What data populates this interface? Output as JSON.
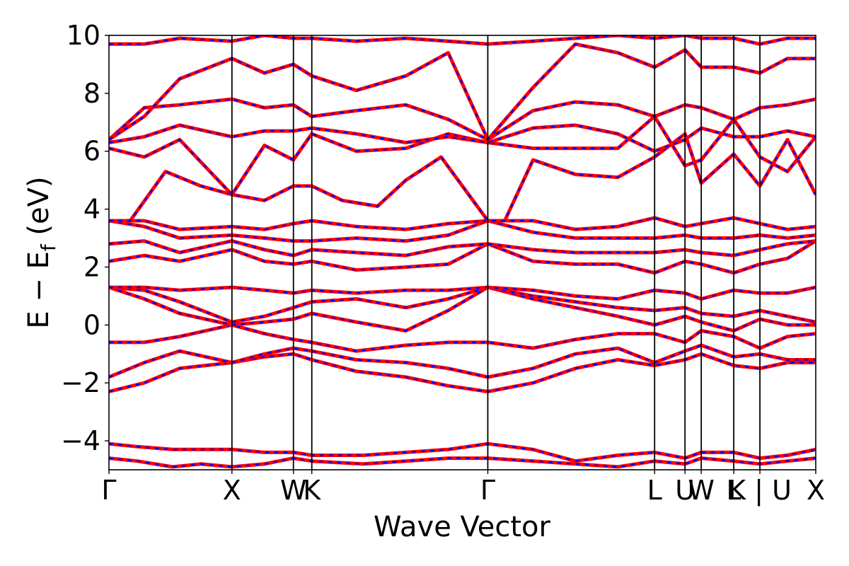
{
  "chart_data": {
    "type": "line",
    "title": "",
    "xlabel": "Wave Vector",
    "ylabel": "E − E",
    "ylabel_sub": "f",
    "ylabel_unit": " (eV)",
    "ylim": [
      -5,
      10
    ],
    "yticks": [
      -4,
      -2,
      0,
      2,
      4,
      6,
      8,
      10
    ],
    "ytick_labels": [
      "−4",
      "−2",
      "0",
      "2",
      "4",
      "6",
      "8",
      "10"
    ],
    "xlim": [
      0,
      1
    ],
    "kpoints": [
      {
        "label": "Γ",
        "x": 0.0
      },
      {
        "label": "X",
        "x": 0.174
      },
      {
        "label": "W",
        "x": 0.261
      },
      {
        "label": "K",
        "x": 0.287
      },
      {
        "label": "Γ",
        "x": 0.536
      },
      {
        "label": "L",
        "x": 0.772
      },
      {
        "label": "U",
        "x": 0.815
      },
      {
        "label": "W",
        "x": 0.838
      },
      {
        "label": "L",
        "x": 0.884
      },
      {
        "label": "K | U",
        "x": 0.921
      },
      {
        "label": "X",
        "x": 1.0
      }
    ],
    "grid": false,
    "legend": "none",
    "series_colors": {
      "primary": "#ff0000",
      "overlay": "#0000ff"
    },
    "series": [
      {
        "x": [
          0,
          0.04,
          0.09,
          0.13,
          0.174,
          0.22,
          0.261,
          0.287,
          0.36,
          0.42,
          0.48,
          0.536,
          0.6,
          0.66,
          0.72,
          0.772,
          0.815,
          0.838,
          0.884,
          0.921,
          0.96,
          1.0
        ],
        "y": [
          -4.1,
          -4.2,
          -4.3,
          -4.3,
          -4.3,
          -4.4,
          -4.4,
          -4.5,
          -4.5,
          -4.4,
          -4.3,
          -4.1,
          -4.3,
          -4.7,
          -4.5,
          -4.4,
          -4.6,
          -4.4,
          -4.4,
          -4.6,
          -4.5,
          -4.3
        ]
      },
      {
        "x": [
          0,
          0.04,
          0.09,
          0.13,
          0.174,
          0.22,
          0.261,
          0.287,
          0.36,
          0.42,
          0.48,
          0.536,
          0.6,
          0.66,
          0.72,
          0.772,
          0.815,
          0.838,
          0.884,
          0.921,
          0.96,
          1.0
        ],
        "y": [
          -4.6,
          -4.7,
          -4.9,
          -4.8,
          -4.9,
          -4.8,
          -4.6,
          -4.7,
          -4.8,
          -4.7,
          -4.6,
          -4.6,
          -4.7,
          -4.8,
          -4.9,
          -4.7,
          -4.8,
          -4.6,
          -4.7,
          -4.8,
          -4.7,
          -4.6
        ]
      },
      {
        "x": [
          0,
          0.05,
          0.1,
          0.174,
          0.22,
          0.261,
          0.287,
          0.35,
          0.42,
          0.48,
          0.536,
          0.6,
          0.66,
          0.72,
          0.772,
          0.815,
          0.838,
          0.884,
          0.921,
          0.96,
          1.0
        ],
        "y": [
          -2.3,
          -2.0,
          -1.5,
          -1.3,
          -1.1,
          -1.0,
          -1.2,
          -1.6,
          -1.8,
          -2.1,
          -2.3,
          -2.0,
          -1.5,
          -1.2,
          -1.4,
          -1.2,
          -1.0,
          -1.4,
          -1.5,
          -1.3,
          -1.3
        ]
      },
      {
        "x": [
          0,
          0.05,
          0.1,
          0.174,
          0.22,
          0.261,
          0.287,
          0.35,
          0.42,
          0.48,
          0.536,
          0.6,
          0.66,
          0.72,
          0.772,
          0.815,
          0.838,
          0.884,
          0.921,
          0.96,
          1.0
        ],
        "y": [
          -1.8,
          -1.3,
          -0.9,
          -1.3,
          -1.0,
          -0.8,
          -0.9,
          -1.2,
          -1.3,
          -1.5,
          -1.8,
          -1.5,
          -1.0,
          -0.8,
          -1.3,
          -0.9,
          -0.7,
          -1.1,
          -1.0,
          -1.2,
          -1.2
        ]
      },
      {
        "x": [
          0,
          0.05,
          0.1,
          0.174,
          0.22,
          0.261,
          0.287,
          0.35,
          0.42,
          0.48,
          0.536,
          0.6,
          0.66,
          0.72,
          0.772,
          0.815,
          0.838,
          0.884,
          0.921,
          0.96,
          1.0
        ],
        "y": [
          -0.6,
          -0.6,
          -0.4,
          0.0,
          -0.3,
          -0.5,
          -0.6,
          -0.9,
          -0.7,
          -0.6,
          -0.6,
          -0.8,
          -0.5,
          -0.3,
          -0.3,
          -0.6,
          -0.2,
          -0.4,
          -0.8,
          -0.4,
          -0.3
        ]
      },
      {
        "x": [
          0,
          0.05,
          0.1,
          0.174,
          0.22,
          0.261,
          0.287,
          0.35,
          0.42,
          0.48,
          0.536,
          0.6,
          0.66,
          0.72,
          0.772,
          0.815,
          0.838,
          0.884,
          0.921,
          0.96,
          1.0
        ],
        "y": [
          1.3,
          0.9,
          0.4,
          0.0,
          0.1,
          0.2,
          0.4,
          0.1,
          -0.2,
          0.5,
          1.3,
          0.9,
          0.6,
          0.3,
          0.0,
          0.3,
          0.1,
          -0.2,
          0.2,
          0.0,
          0.0
        ]
      },
      {
        "x": [
          0,
          0.05,
          0.1,
          0.174,
          0.22,
          0.261,
          0.287,
          0.35,
          0.42,
          0.48,
          0.536,
          0.6,
          0.66,
          0.72,
          0.772,
          0.815,
          0.838,
          0.884,
          0.921,
          0.96,
          1.0
        ],
        "y": [
          1.3,
          1.2,
          0.8,
          0.1,
          0.3,
          0.6,
          0.8,
          0.9,
          0.6,
          0.9,
          1.3,
          1.0,
          0.8,
          0.6,
          0.5,
          0.6,
          0.4,
          0.3,
          0.5,
          0.3,
          0.1
        ]
      },
      {
        "x": [
          0,
          0.05,
          0.1,
          0.174,
          0.22,
          0.261,
          0.287,
          0.35,
          0.42,
          0.48,
          0.536,
          0.6,
          0.66,
          0.72,
          0.772,
          0.815,
          0.838,
          0.884,
          0.921,
          0.96,
          1.0
        ],
        "y": [
          1.3,
          1.3,
          1.2,
          1.3,
          1.2,
          1.1,
          1.2,
          1.1,
          1.2,
          1.2,
          1.3,
          1.2,
          1.0,
          0.9,
          1.2,
          1.1,
          0.9,
          1.2,
          1.1,
          1.1,
          1.3
        ]
      },
      {
        "x": [
          0,
          0.05,
          0.1,
          0.174,
          0.22,
          0.261,
          0.287,
          0.35,
          0.42,
          0.48,
          0.536,
          0.6,
          0.66,
          0.72,
          0.772,
          0.815,
          0.838,
          0.884,
          0.921,
          0.96,
          1.0
        ],
        "y": [
          2.2,
          2.4,
          2.2,
          2.6,
          2.2,
          2.1,
          2.2,
          1.9,
          2.0,
          2.1,
          2.8,
          2.2,
          2.1,
          2.1,
          1.8,
          2.2,
          2.1,
          1.8,
          2.1,
          2.3,
          2.9
        ]
      },
      {
        "x": [
          0,
          0.05,
          0.1,
          0.174,
          0.22,
          0.261,
          0.287,
          0.35,
          0.42,
          0.48,
          0.536,
          0.6,
          0.66,
          0.72,
          0.772,
          0.815,
          0.838,
          0.884,
          0.921,
          0.96,
          1.0
        ],
        "y": [
          2.8,
          2.9,
          2.5,
          2.9,
          2.6,
          2.4,
          2.6,
          2.5,
          2.4,
          2.7,
          2.8,
          2.6,
          2.5,
          2.5,
          2.5,
          2.6,
          2.5,
          2.4,
          2.6,
          2.8,
          2.9
        ]
      },
      {
        "x": [
          0,
          0.05,
          0.1,
          0.174,
          0.22,
          0.261,
          0.287,
          0.35,
          0.42,
          0.48,
          0.536,
          0.6,
          0.66,
          0.72,
          0.772,
          0.815,
          0.838,
          0.884,
          0.921,
          0.96,
          1.0
        ],
        "y": [
          3.6,
          3.4,
          3.0,
          3.1,
          3.0,
          2.9,
          2.9,
          3.0,
          2.9,
          3.1,
          3.6,
          3.2,
          3.0,
          3.0,
          3.0,
          3.1,
          3.0,
          3.0,
          3.1,
          3.0,
          3.1
        ]
      },
      {
        "x": [
          0,
          0.05,
          0.1,
          0.174,
          0.22,
          0.261,
          0.287,
          0.35,
          0.42,
          0.48,
          0.536,
          0.6,
          0.66,
          0.72,
          0.772,
          0.815,
          0.838,
          0.884,
          0.921,
          0.96,
          1.0
        ],
        "y": [
          3.6,
          3.6,
          3.3,
          3.4,
          3.3,
          3.5,
          3.6,
          3.4,
          3.3,
          3.5,
          3.6,
          3.6,
          3.3,
          3.4,
          3.7,
          3.4,
          3.5,
          3.7,
          3.5,
          3.3,
          3.4
        ]
      },
      {
        "x": [
          0,
          0.03,
          0.08,
          0.13,
          0.174,
          0.22,
          0.261,
          0.287,
          0.33,
          0.38,
          0.42,
          0.47,
          0.536,
          0.56,
          0.6,
          0.66,
          0.72,
          0.772,
          0.815,
          0.838,
          0.884,
          0.921,
          0.96,
          1.0
        ],
        "y": [
          3.6,
          3.6,
          5.3,
          4.8,
          4.5,
          4.3,
          4.8,
          4.8,
          4.3,
          4.1,
          5.0,
          5.8,
          3.6,
          3.6,
          5.7,
          5.2,
          5.1,
          5.8,
          6.6,
          4.9,
          5.9,
          4.8,
          6.4,
          4.5
        ]
      },
      {
        "x": [
          0,
          0.05,
          0.1,
          0.174,
          0.22,
          0.261,
          0.287,
          0.35,
          0.42,
          0.48,
          0.536,
          0.6,
          0.66,
          0.72,
          0.772,
          0.815,
          0.838,
          0.884,
          0.921,
          0.96,
          1.0
        ],
        "y": [
          6.1,
          5.8,
          6.4,
          4.5,
          6.2,
          5.7,
          6.6,
          6.0,
          6.1,
          6.6,
          6.3,
          6.1,
          6.1,
          6.1,
          7.2,
          5.5,
          5.7,
          7.1,
          5.8,
          5.3,
          6.5
        ]
      },
      {
        "x": [
          0,
          0.05,
          0.1,
          0.174,
          0.22,
          0.261,
          0.287,
          0.35,
          0.42,
          0.48,
          0.536,
          0.6,
          0.66,
          0.72,
          0.772,
          0.815,
          0.838,
          0.884,
          0.921,
          0.96,
          1.0
        ],
        "y": [
          6.3,
          6.5,
          6.9,
          6.5,
          6.7,
          6.7,
          6.8,
          6.6,
          6.3,
          6.5,
          6.3,
          6.8,
          6.9,
          6.6,
          6.0,
          6.4,
          6.8,
          6.5,
          6.5,
          6.7,
          6.5
        ]
      },
      {
        "x": [
          0,
          0.05,
          0.1,
          0.174,
          0.22,
          0.261,
          0.287,
          0.35,
          0.42,
          0.48,
          0.536,
          0.6,
          0.66,
          0.72,
          0.772,
          0.815,
          0.838,
          0.884,
          0.921,
          0.96,
          1.0
        ],
        "y": [
          6.4,
          7.5,
          7.6,
          7.8,
          7.5,
          7.6,
          7.2,
          7.4,
          7.6,
          7.1,
          6.4,
          7.4,
          7.7,
          7.6,
          7.2,
          7.6,
          7.5,
          7.1,
          7.5,
          7.6,
          7.8
        ]
      },
      {
        "x": [
          0,
          0.05,
          0.1,
          0.174,
          0.22,
          0.261,
          0.287,
          0.35,
          0.42,
          0.48,
          0.536,
          0.6,
          0.66,
          0.72,
          0.772,
          0.815,
          0.838,
          0.884,
          0.921,
          0.96,
          1.0
        ],
        "y": [
          6.4,
          7.2,
          8.5,
          9.2,
          8.7,
          9.0,
          8.6,
          8.1,
          8.6,
          9.4,
          6.4,
          8.2,
          9.7,
          9.4,
          8.9,
          9.5,
          8.9,
          8.9,
          8.7,
          9.2,
          9.2
        ]
      },
      {
        "x": [
          0,
          0.05,
          0.1,
          0.174,
          0.22,
          0.261,
          0.287,
          0.35,
          0.42,
          0.48,
          0.536,
          0.6,
          0.66,
          0.72,
          0.772,
          0.815,
          0.838,
          0.884,
          0.921,
          0.96,
          1.0
        ],
        "y": [
          9.7,
          9.7,
          9.9,
          9.8,
          10.0,
          9.9,
          9.9,
          9.8,
          9.9,
          9.8,
          9.7,
          9.8,
          9.9,
          10.0,
          9.9,
          10.0,
          9.9,
          9.9,
          9.7,
          9.9,
          9.9
        ]
      }
    ]
  }
}
